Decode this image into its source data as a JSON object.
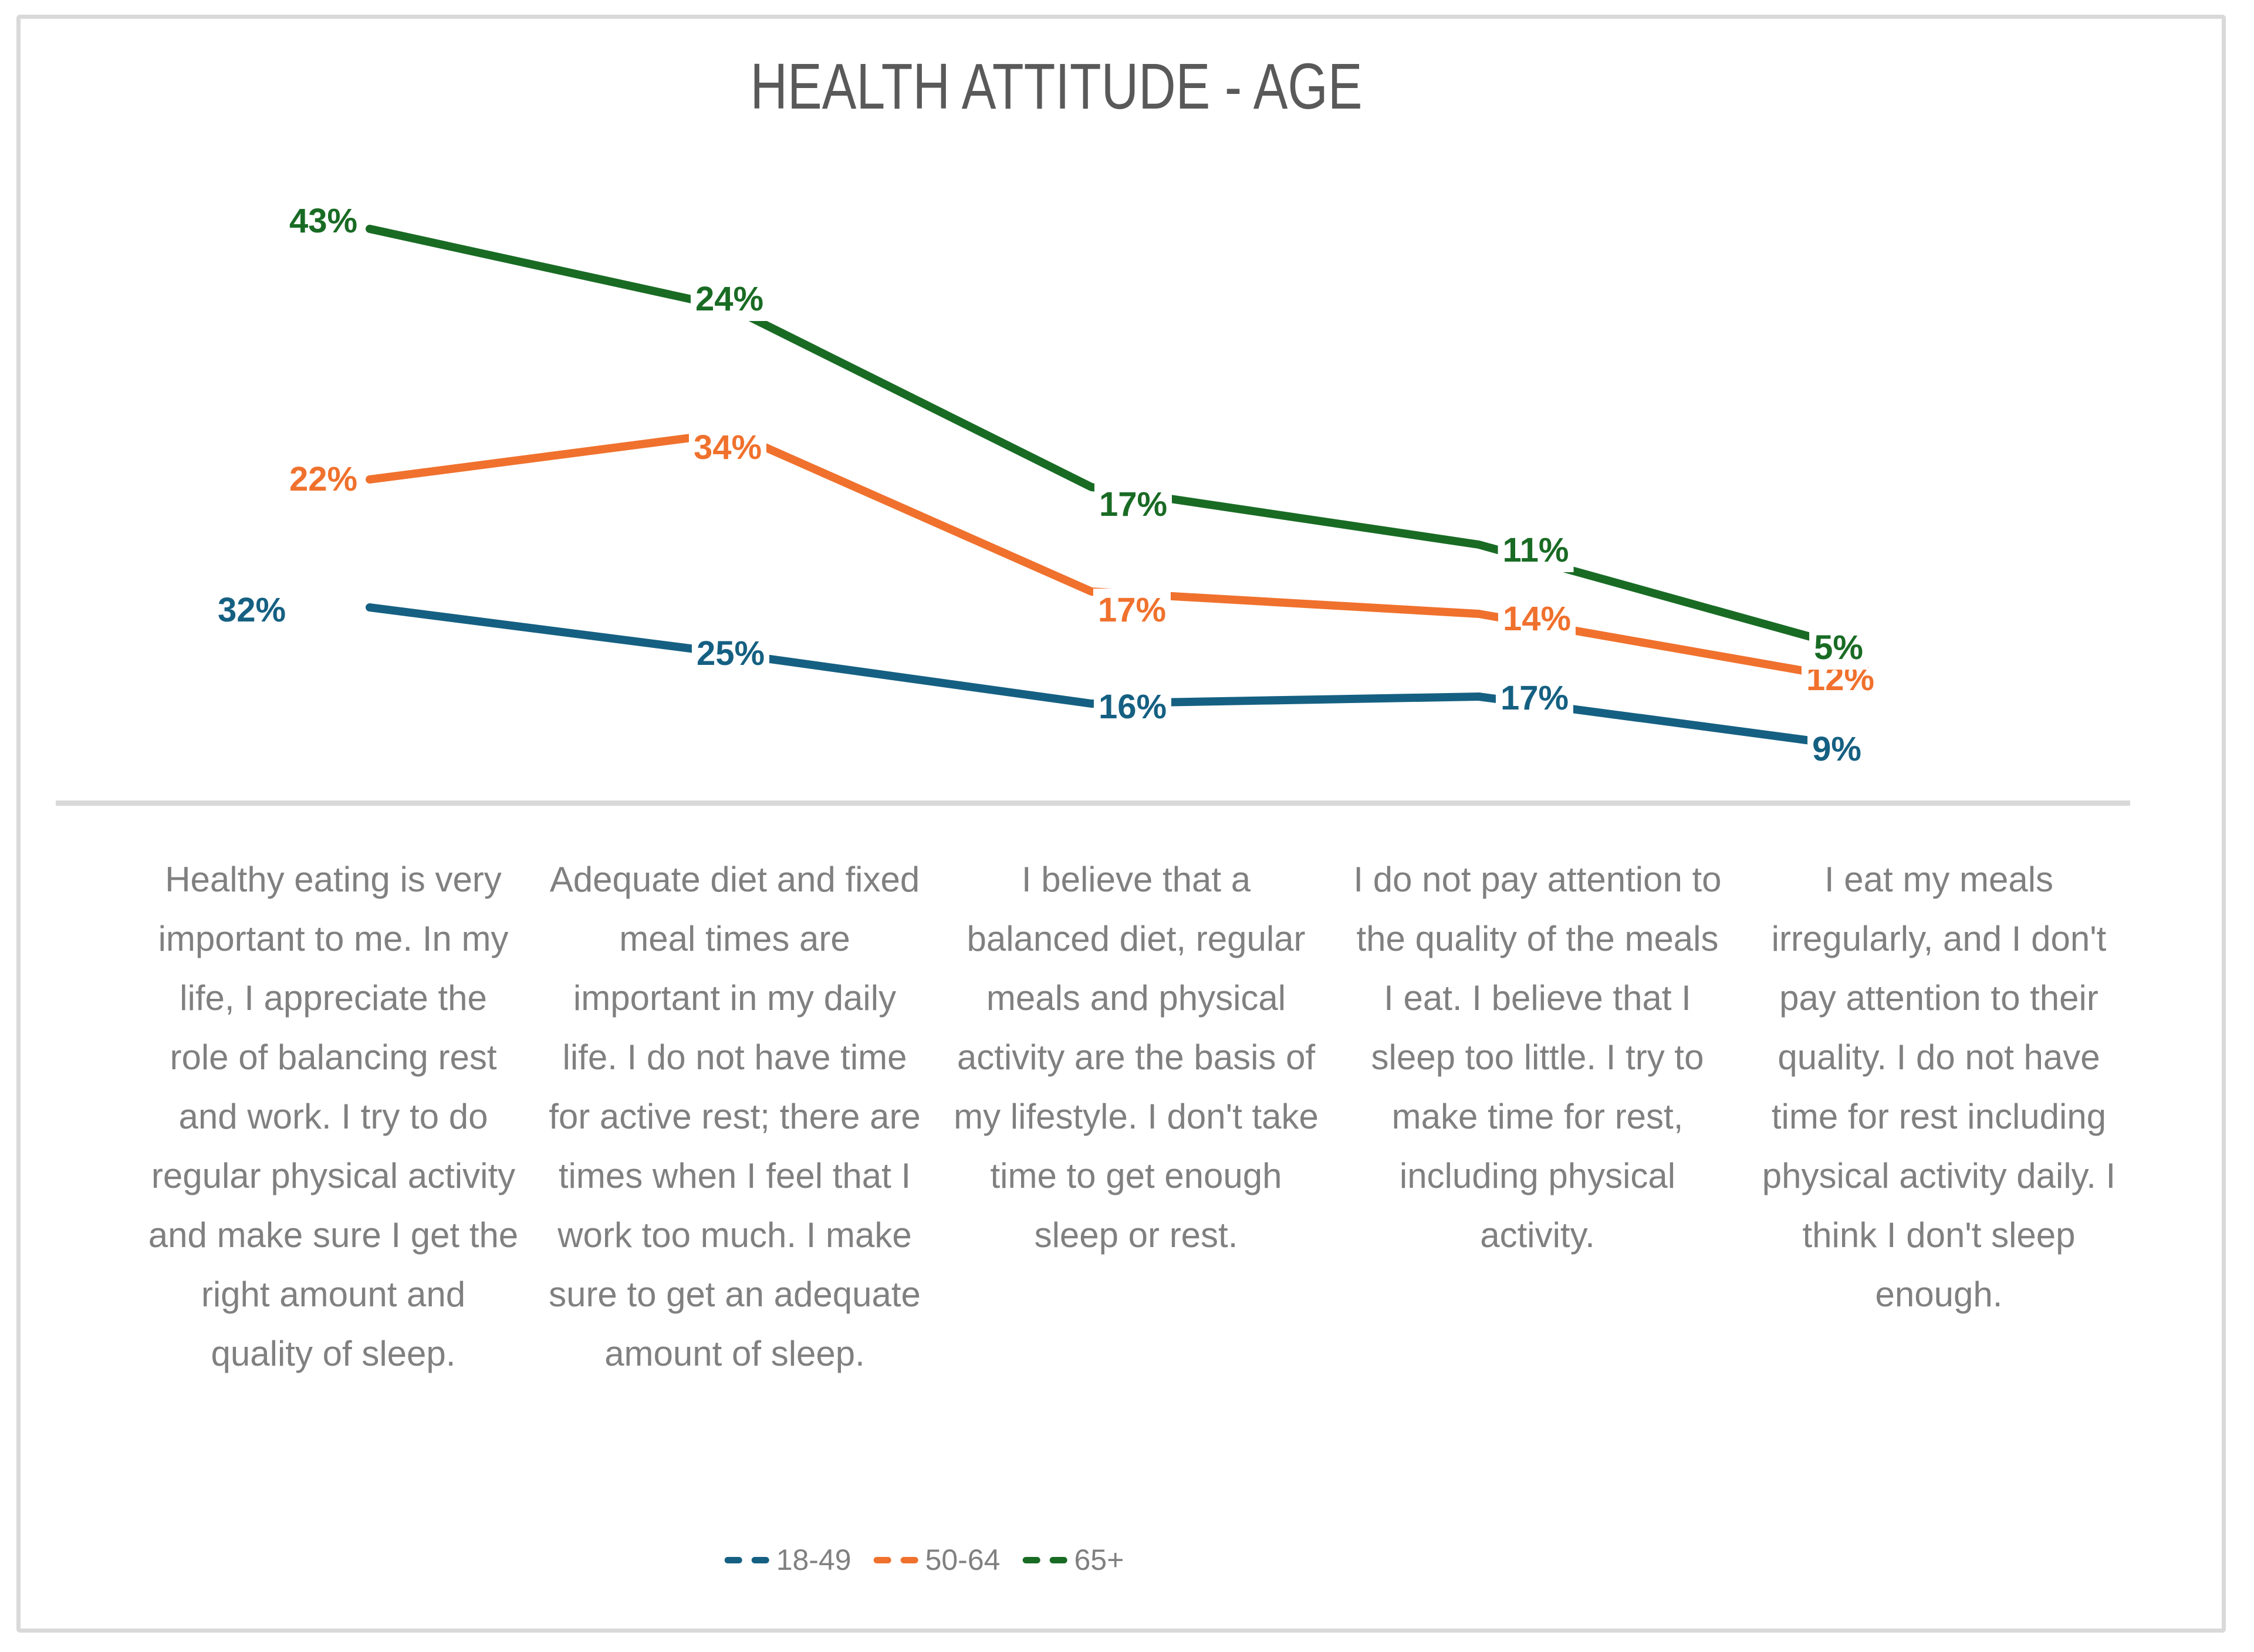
{
  "title": "HEALTH ATTITUDE - AGE",
  "chart_data": {
    "type": "line",
    "title": "HEALTH ATTITUDE - AGE",
    "categories": [
      "Healthy eating is very important to me. In my life, I appreciate the role of balancing rest and work. I try to do regular physical activity and make sure I get the right amount and quality of sleep.",
      "Adequate diet and fixed meal times are important in my daily life. I do not have time for active rest; there are times when I feel that I work too much. I make sure to get an adequate amount of sleep.",
      "I believe that a balanced diet, regular meals and physical activity are the basis of my lifestyle. I don't take time to get enough sleep or rest.",
      "I do not pay attention to the quality of the meals I eat. I believe that I sleep too little. I try to make time for rest, including physical activity.",
      "I eat my meals irregularly, and I don't pay attention to their quality. I do not have time for rest including physical activity daily. I think I don't sleep enough."
    ],
    "series": [
      {
        "name": "18-49",
        "color": "#156082",
        "values": [
          32,
          25,
          16,
          17,
          9
        ]
      },
      {
        "name": "50-64",
        "color": "#F0712D",
        "values": [
          22,
          34,
          17,
          14,
          12
        ]
      },
      {
        "name": "65+",
        "color": "#196B24",
        "values": [
          43,
          24,
          17,
          11,
          5
        ]
      }
    ],
    "value_suffix": "%",
    "data_labels": true,
    "legend_position": "bottom",
    "grid": false,
    "y_axis_visible": false,
    "x_axis_line_color": "#D9D9D9"
  },
  "colors": {
    "title_text": "#595959",
    "category_text": "#808080",
    "legend_text": "#808080",
    "border": "#D9D9D9",
    "background": "#FFFFFF"
  }
}
